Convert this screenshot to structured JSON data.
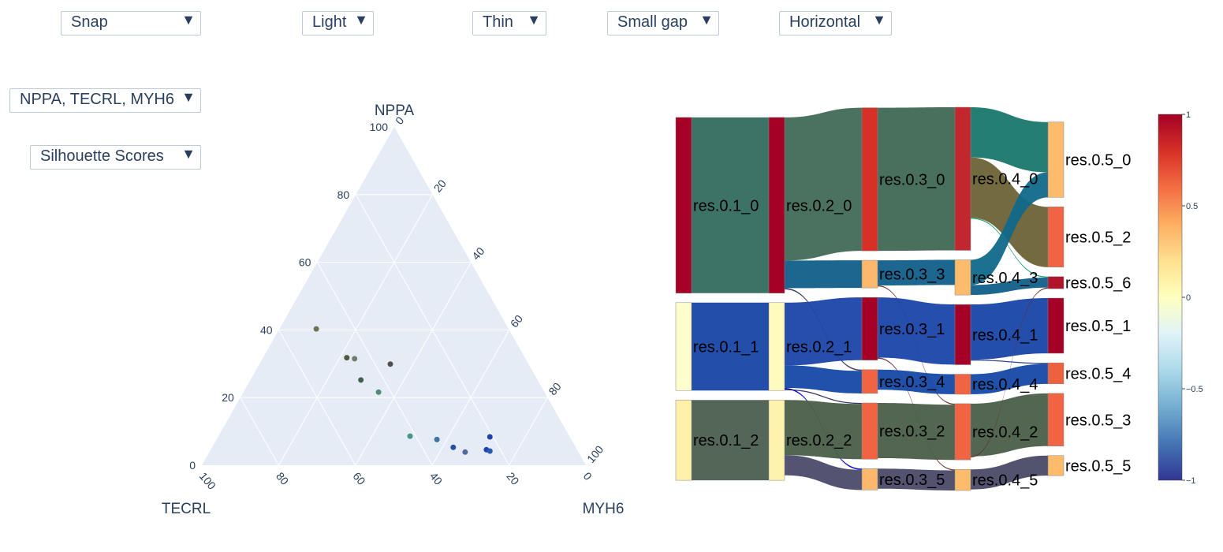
{
  "controls": {
    "snap": "Snap",
    "light": "Light",
    "thin": "Thin",
    "gap": "Small gap",
    "orientation": "Horizontal",
    "genes": "NPPA, TECRL, MYH6",
    "metric": "Silhouette Scores",
    "arrow": "▼"
  },
  "chart_data": [
    {
      "type": "scatter",
      "subtype": "ternary",
      "axes": {
        "a": "NPPA",
        "b": "TECRL",
        "c": "MYH6"
      },
      "ticks": [
        "0",
        "20",
        "40",
        "60",
        "80",
        "100"
      ],
      "points": [
        {
          "a": 40.3,
          "b": 50.1,
          "c": 9.6,
          "color": "#6e7450"
        },
        {
          "a": 31.8,
          "b": 46.4,
          "c": 21.8,
          "color": "#4d5a3d"
        },
        {
          "a": 31.5,
          "b": 44.5,
          "c": 24.0,
          "color": "#717d6a"
        },
        {
          "a": 29.9,
          "b": 36.0,
          "c": 34.1,
          "color": "#4f4f4f"
        },
        {
          "a": 25.2,
          "b": 46.0,
          "c": 28.8,
          "color": "#3e6150"
        },
        {
          "a": 21.6,
          "b": 43.2,
          "c": 35.2,
          "color": "#568873"
        },
        {
          "a": 8.6,
          "b": 41.5,
          "c": 49.9,
          "color": "#47958a"
        },
        {
          "a": 7.6,
          "b": 35.0,
          "c": 57.4,
          "color": "#3e73a3"
        },
        {
          "a": 5.3,
          "b": 31.9,
          "c": 62.8,
          "color": "#2750a0"
        },
        {
          "a": 3.9,
          "b": 29.5,
          "c": 66.6,
          "color": "#5469a0"
        },
        {
          "a": 8.4,
          "b": 20.8,
          "c": 70.8,
          "color": "#1f41a8"
        },
        {
          "a": 4.6,
          "b": 23.6,
          "c": 71.8,
          "color": "#1f41a8"
        },
        {
          "a": 4.2,
          "b": 22.9,
          "c": 72.9,
          "color": "#2a56b6"
        }
      ]
    },
    {
      "type": "sankey",
      "nodes": [
        {
          "label": "res.0.1_0",
          "score": 1.0,
          "color": "#a50026"
        },
        {
          "label": "res.0.1_1",
          "score": 0.0,
          "color": "#fffecc"
        },
        {
          "label": "res.0.1_2",
          "score": 0.1,
          "color": "#fff1ac"
        },
        {
          "label": "res.0.2_0",
          "score": 1.0,
          "color": "#a50026"
        },
        {
          "label": "res.0.2_1",
          "score": 0.05,
          "color": "#fffbbf"
        },
        {
          "label": "res.0.2_2",
          "score": 0.1,
          "color": "#fff2ae"
        },
        {
          "label": "res.0.3_0",
          "score": 0.7,
          "color": "#d73027"
        },
        {
          "label": "res.0.3_3",
          "score": 0.4,
          "color": "#fdb96b"
        },
        {
          "label": "res.0.3_1",
          "score": 0.95,
          "color": "#a50026"
        },
        {
          "label": "res.0.3_4",
          "score": 0.6,
          "color": "#f06443"
        },
        {
          "label": "res.0.3_2",
          "score": 0.6,
          "color": "#f06443"
        },
        {
          "label": "res.0.3_5",
          "score": 0.4,
          "color": "#fdb96b"
        },
        {
          "label": "res.0.4_0",
          "score": 0.85,
          "color": "#c1272d"
        },
        {
          "label": "res.0.4_3",
          "score": 0.4,
          "color": "#fdbb6c"
        },
        {
          "label": "res.0.4_1",
          "score": 0.95,
          "color": "#a50026"
        },
        {
          "label": "res.0.4_4",
          "score": 0.6,
          "color": "#f06443"
        },
        {
          "label": "res.0.4_2",
          "score": 0.6,
          "color": "#f06443"
        },
        {
          "label": "res.0.4_5",
          "score": 0.4,
          "color": "#fdbb6c"
        },
        {
          "label": "res.0.5_0",
          "score": 0.4,
          "color": "#fdbb6c"
        },
        {
          "label": "res.0.5_2",
          "score": 0.6,
          "color": "#f06443"
        },
        {
          "label": "res.0.5_6",
          "score": 0.95,
          "color": "#b0152a"
        },
        {
          "label": "res.0.5_1",
          "score": 0.95,
          "color": "#a50026"
        },
        {
          "label": "res.0.5_4",
          "score": 0.6,
          "color": "#ee613f"
        },
        {
          "label": "res.0.5_3",
          "score": 0.6,
          "color": "#f06443"
        },
        {
          "label": "res.0.5_5",
          "score": 0.4,
          "color": "#fdbb6c"
        }
      ],
      "links": [
        {
          "source": "res.0.1_0",
          "target": "res.0.2_0",
          "value": 70,
          "color": "#316b5e"
        },
        {
          "source": "res.0.1_1",
          "target": "res.0.2_1",
          "value": 35,
          "color": "#1744a5"
        },
        {
          "source": "res.0.1_2",
          "target": "res.0.2_2",
          "value": 32,
          "color": "#4a5e4f"
        },
        {
          "source": "res.0.2_0",
          "target": "res.0.3_0",
          "value": 57,
          "color": "#416a57"
        },
        {
          "source": "res.0.2_0",
          "target": "res.0.3_3",
          "value": 11,
          "color": "#0f5f8a"
        },
        {
          "source": "res.0.2_0",
          "target": "res.0.3_4",
          "value": 0.5,
          "color": "#333355"
        },
        {
          "source": "res.0.2_1",
          "target": "res.0.3_1",
          "value": 25,
          "color": "#1b45a8"
        },
        {
          "source": "res.0.2_1",
          "target": "res.0.3_4",
          "value": 9,
          "color": "#1448a6"
        },
        {
          "source": "res.0.2_1",
          "target": "res.0.3_5",
          "value": 0.5,
          "color": "#0000cc"
        },
        {
          "source": "res.0.2_1",
          "target": "res.0.3_2",
          "value": 0.4,
          "color": "#2a2a66"
        },
        {
          "source": "res.0.2_2",
          "target": "res.0.3_2",
          "value": 22,
          "color": "#495e48"
        },
        {
          "source": "res.0.2_2",
          "target": "res.0.3_5",
          "value": 8,
          "color": "#4c4a6a"
        },
        {
          "source": "res.0.3_0",
          "target": "res.0.4_0",
          "value": 57,
          "color": "#3e6854"
        },
        {
          "source": "res.0.3_3",
          "target": "res.0.4_3",
          "value": 10,
          "color": "#105e8a"
        },
        {
          "source": "res.0.3_3",
          "target": "res.0.4_2",
          "value": 0.4,
          "color": "#6b2b2b"
        },
        {
          "source": "res.0.3_1",
          "target": "res.0.4_1",
          "value": 24,
          "color": "#1a45a8"
        },
        {
          "source": "res.0.3_1",
          "target": "res.0.4_5",
          "value": 0.4,
          "color": "#6b2b2b"
        },
        {
          "source": "res.0.3_4",
          "target": "res.0.4_4",
          "value": 8,
          "color": "#1448a6"
        },
        {
          "source": "res.0.3_2",
          "target": "res.0.4_2",
          "value": 22,
          "color": "#4a5e48"
        },
        {
          "source": "res.0.3_5",
          "target": "res.0.4_5",
          "value": 8,
          "color": "#4a4a68"
        },
        {
          "source": "res.0.4_0",
          "target": "res.0.5_0",
          "value": 20,
          "color": "#18776d"
        },
        {
          "source": "res.0.4_0",
          "target": "res.0.5_2",
          "value": 24,
          "color": "#6b6236"
        },
        {
          "source": "res.0.4_0",
          "target": "res.0.5_6",
          "value": 0.4,
          "color": "#119966"
        },
        {
          "source": "res.0.4_3",
          "target": "res.0.5_0",
          "value": 10,
          "color": "#11698a"
        },
        {
          "source": "res.0.4_3",
          "target": "res.0.5_6",
          "value": 4,
          "color": "#0f5f8a"
        },
        {
          "source": "res.0.4_1",
          "target": "res.0.5_1",
          "value": 22,
          "color": "#1745a8"
        },
        {
          "source": "res.0.4_1",
          "target": "res.0.5_4",
          "value": 0.4,
          "color": "#2c3a88"
        },
        {
          "source": "res.0.4_4",
          "target": "res.0.5_4",
          "value": 8,
          "color": "#1448a6"
        },
        {
          "source": "res.0.4_2",
          "target": "res.0.5_3",
          "value": 21,
          "color": "#4a5e48"
        },
        {
          "source": "res.0.4_2",
          "target": "res.0.5_6",
          "value": 0.4,
          "color": "#6b2b2b"
        },
        {
          "source": "res.0.4_5",
          "target": "res.0.5_5",
          "value": 8,
          "color": "#4a4a68"
        }
      ],
      "colorbar": {
        "colorscale": "RdYlBu_r",
        "min": -1,
        "max": 1,
        "ticks": [
          "1",
          "0.5",
          "0",
          "−0.5",
          "−1"
        ],
        "stops": [
          "#313695",
          "#4575b4",
          "#74add1",
          "#abd9e9",
          "#e0f3f8",
          "#ffffbf",
          "#fee090",
          "#fdae61",
          "#f46d43",
          "#d73027",
          "#a50026"
        ]
      }
    }
  ]
}
